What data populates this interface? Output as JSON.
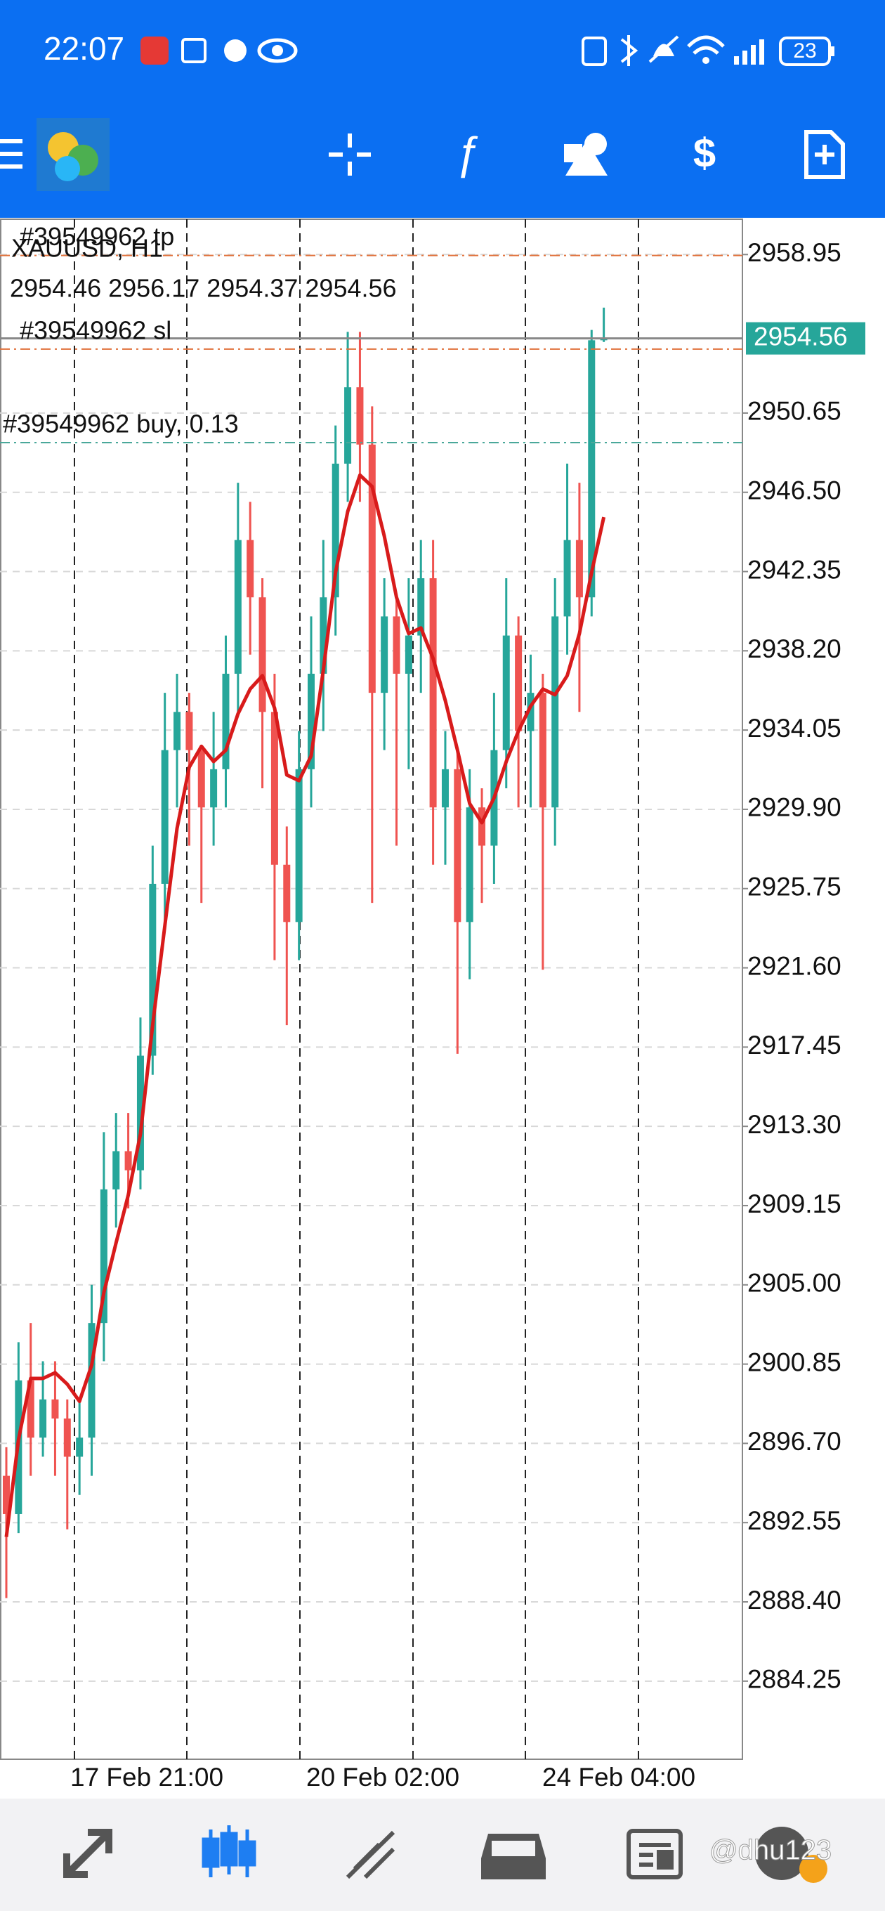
{
  "status_bar": {
    "time": "22:07",
    "battery": "23"
  },
  "watermark": "@dhu123",
  "chart_data": {
    "type": "candlestick",
    "symbol_label": "XAUUSD, H1",
    "ohlc_label": "2954.46 2956.17 2954.37 2954.56",
    "up_color": "#26a69a",
    "down_color": "#ef5350",
    "open": [
      2895,
      2893,
      2900,
      2897,
      2899,
      2898,
      2896,
      2897,
      2903,
      2910,
      2912,
      2911,
      2917,
      2926,
      2933,
      2935,
      2933,
      2930,
      2932,
      2937,
      2944,
      2941,
      2935,
      2927,
      2924,
      2932,
      2937,
      2941,
      2948,
      2952,
      2949,
      2936,
      2940,
      2937,
      2939,
      2942,
      2930,
      2932,
      2924,
      2930,
      2928,
      2933,
      2939,
      2934,
      2936,
      2930,
      2940,
      2944,
      2941,
      2954.46
    ],
    "high": [
      2896.5,
      2902,
      2903,
      2901,
      2901,
      2899,
      2899,
      2905,
      2913,
      2914,
      2914,
      2919,
      2928,
      2936,
      2937,
      2936,
      2933,
      2935,
      2939,
      2947,
      2946,
      2942,
      2937,
      2929,
      2934,
      2940,
      2944,
      2950,
      2954.9,
      2954.9,
      2951,
      2942,
      2941,
      2942,
      2944,
      2944,
      2934,
      2933,
      2932,
      2931,
      2936,
      2942,
      2940,
      2938,
      2937,
      2942,
      2948,
      2947,
      2955,
      2956.17
    ],
    "low": [
      2888.6,
      2892,
      2895,
      2896,
      2895,
      2892.2,
      2894,
      2895,
      2901,
      2908,
      2909,
      2910,
      2916,
      2924,
      2930,
      2928,
      2925,
      2928,
      2930,
      2935,
      2938,
      2931,
      2922,
      2918.6,
      2922,
      2930,
      2934,
      2939,
      2946,
      2946,
      2925,
      2933,
      2928,
      2932,
      2936,
      2927,
      2927,
      2917.1,
      2921,
      2925,
      2926,
      2931,
      2930,
      2930,
      2921.5,
      2928,
      2938,
      2935,
      2940,
      2954.37
    ],
    "close": [
      2893,
      2900,
      2897,
      2899,
      2898,
      2896,
      2897,
      2903,
      2910,
      2912,
      2911,
      2917,
      2926,
      2933,
      2935,
      2933,
      2930,
      2932,
      2937,
      2944,
      2941,
      2935,
      2927,
      2924,
      2932,
      2937,
      2941,
      2948,
      2952,
      2949,
      2936,
      2940,
      2937,
      2939,
      2942,
      2930,
      2932,
      2924,
      2930,
      2928,
      2933,
      2939,
      2934,
      2936,
      2930,
      2940,
      2944,
      2941,
      2954.46,
      2954.56
    ],
    "ma": {
      "color": "#d81b1b",
      "values": [
        2891.8,
        2896.9,
        2900.1,
        2900.1,
        2900.4,
        2899.8,
        2898.9,
        2900.8,
        2904.6,
        2907.2,
        2909.7,
        2912.9,
        2918.6,
        2923.8,
        2928.9,
        2932.1,
        2933.2,
        2932.4,
        2933.0,
        2934.9,
        2936.2,
        2936.9,
        2935.2,
        2931.7,
        2931.4,
        2932.7,
        2937.2,
        2942.3,
        2945.5,
        2947.4,
        2946.8,
        2944.2,
        2941.0,
        2939.1,
        2939.4,
        2937.8,
        2935.6,
        2933.0,
        2930.2,
        2929.2,
        2930.5,
        2932.4,
        2934.0,
        2935.3,
        2936.2,
        2935.9,
        2936.9,
        2939.1,
        2942.3,
        2945.2
      ]
    },
    "ylim": [
      2880.16,
      2960.8
    ],
    "yticks": [
      2958.95,
      2950.65,
      {
        "value": 2946.5,
        "label": "2946.50"
      },
      2942.35,
      {
        "value": 2938.2,
        "label": "2938.20"
      },
      2934.05,
      {
        "value": 2929.9,
        "label": "2929.90"
      },
      2925.75,
      {
        "value": 2921.6,
        "label": "2921.60"
      },
      2917.45,
      {
        "value": 2913.3,
        "label": "2913.30"
      },
      2909.15,
      {
        "value": 2905,
        "label": "2905.00"
      },
      2900.85,
      {
        "value": 2896.7,
        "label": "2896.70"
      },
      2892.55,
      {
        "value": 2888.4,
        "label": "2888.40"
      },
      2884.25
    ],
    "grid": true,
    "current_price": 2954.56,
    "current_price_color": "#26a69a",
    "trade_lines": [
      {
        "label": "#39549962 tp",
        "value": 2958.9,
        "color": "#e0703a"
      },
      {
        "label": "#39549962 sl",
        "value": 2954.0,
        "color": "#e0703a"
      },
      {
        "label": "#39549962 buy, 0.13",
        "value": 2949.1,
        "color": "#4aa89a"
      }
    ],
    "x_labels": [
      "17 Feb 21:00",
      "20 Feb 02:00",
      "24 Feb 04:00"
    ]
  }
}
